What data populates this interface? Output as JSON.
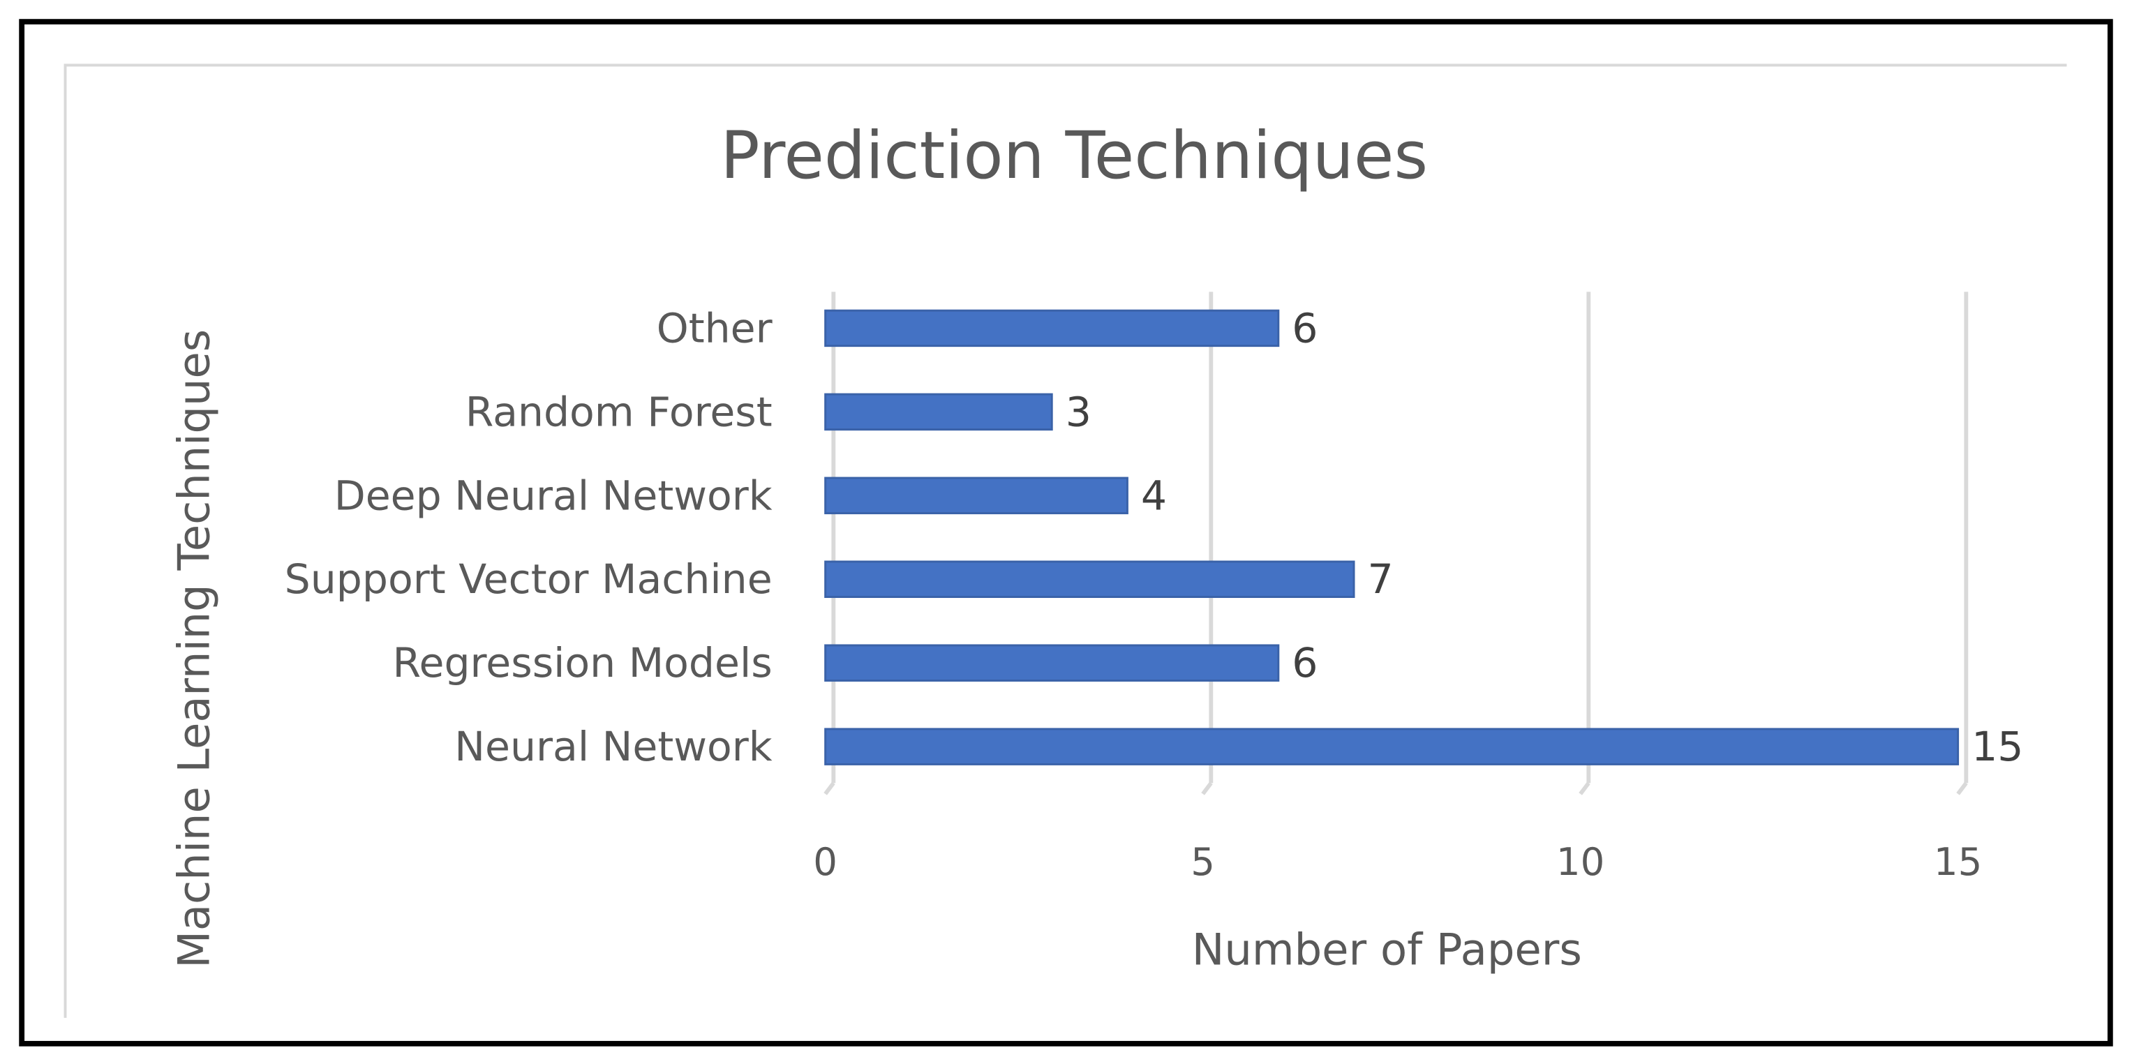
{
  "chart_data": {
    "type": "bar",
    "orientation": "horizontal",
    "title": "Prediction Techniques",
    "xlabel": "Number of Papers",
    "ylabel": "Machine Learning Techniques",
    "categories": [
      "Neural Network",
      "Regression Models",
      "Support Vector Machine",
      "Deep Neural Network",
      "Random Forest",
      "Other"
    ],
    "values": [
      15,
      6,
      7,
      4,
      3,
      6
    ],
    "color": "#4472c4",
    "xlim": [
      0,
      15
    ],
    "xticks": [
      0,
      5,
      10,
      15
    ],
    "grid": true
  }
}
